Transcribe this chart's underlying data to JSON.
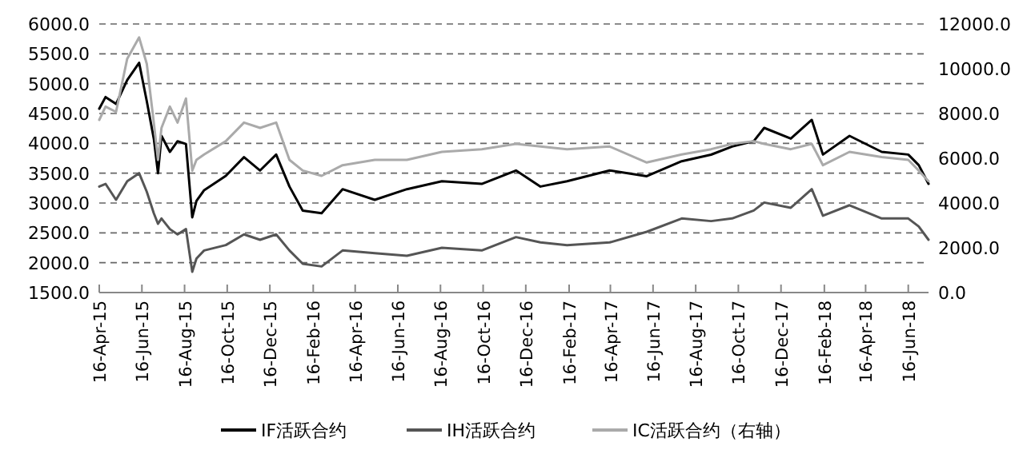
{
  "chart_data": {
    "type": "line",
    "x": [
      "2015-04-16",
      "2015-04-25",
      "2015-05-10",
      "2015-05-26",
      "2015-06-12",
      "2015-06-23",
      "2015-07-03",
      "2015-07-09",
      "2015-07-14",
      "2015-07-26",
      "2015-08-06",
      "2015-08-18",
      "2015-08-27",
      "2015-09-02",
      "2015-09-13",
      "2015-10-14",
      "2015-11-09",
      "2015-12-02",
      "2015-12-25",
      "2016-01-13",
      "2016-02-01",
      "2016-02-28",
      "2016-03-29",
      "2016-05-14",
      "2016-06-29",
      "2016-08-18",
      "2016-10-14",
      "2016-12-02",
      "2017-01-06",
      "2017-02-13",
      "2017-04-15",
      "2017-06-07",
      "2017-07-27",
      "2017-09-07",
      "2017-10-07",
      "2017-11-07",
      "2017-11-22",
      "2017-12-30",
      "2018-01-29",
      "2018-02-14",
      "2018-03-24",
      "2018-05-09",
      "2018-06-16",
      "2018-07-01",
      "2018-07-15"
    ],
    "series": [
      {
        "name": "IF活跃合约",
        "color": "#000000",
        "values": [
          4580,
          4776,
          4660,
          5062,
          5350,
          4705,
          4080,
          3500,
          4125,
          3857,
          4036,
          3990,
          2760,
          3035,
          3215,
          3455,
          3768,
          3545,
          3812,
          3276,
          2874,
          2830,
          3232,
          3053,
          3232,
          3366,
          3321,
          3545,
          3276,
          3366,
          3545,
          3450,
          3700,
          3810,
          3946,
          4036,
          4259,
          4080,
          4393,
          3812,
          4125,
          3857,
          3812,
          3634,
          3321
        ]
      },
      {
        "name": "IH活跃合约",
        "color": "#555555",
        "values": [
          3276,
          3321,
          3053,
          3366,
          3500,
          3188,
          2830,
          2652,
          2741,
          2563,
          2474,
          2563,
          1847,
          2070,
          2205,
          2295,
          2474,
          2384,
          2474,
          2205,
          1982,
          1937,
          2205,
          2160,
          2116,
          2250,
          2205,
          2429,
          2340,
          2295,
          2340,
          2518,
          2741,
          2697,
          2741,
          2875,
          3008,
          2920,
          3232,
          2786,
          2963,
          2741,
          2741,
          2607,
          2384
        ]
      },
      {
        "name": "IC活跃合约（右轴）",
        "color": "#aaaaaa",
        "axis": "y2",
        "values": [
          7714,
          8310,
          8070,
          10450,
          11400,
          10214,
          7595,
          5930,
          7357,
          8310,
          7595,
          8670,
          5450,
          5930,
          6167,
          6763,
          7595,
          7357,
          7595,
          5930,
          5450,
          5214,
          5690,
          5930,
          5930,
          6286,
          6405,
          6643,
          6524,
          6405,
          6524,
          5810,
          6167,
          6405,
          6643,
          6763,
          6643,
          6405,
          6643,
          5690,
          6286,
          6050,
          5930,
          5450,
          4976
        ]
      }
    ],
    "xlim": [
      "2015-04-16",
      "2018-07-15"
    ],
    "xticks": [
      {
        "value": "2015-04-16",
        "label": "16-Apr-15"
      },
      {
        "value": "2015-06-16",
        "label": "16-Jun-15"
      },
      {
        "value": "2015-08-16",
        "label": "16-Aug-15"
      },
      {
        "value": "2015-10-16",
        "label": "16-Oct-15"
      },
      {
        "value": "2015-12-16",
        "label": "16-Dec-15"
      },
      {
        "value": "2016-02-16",
        "label": "16-Feb-16"
      },
      {
        "value": "2016-04-16",
        "label": "16-Apr-16"
      },
      {
        "value": "2016-06-16",
        "label": "16-Jun-16"
      },
      {
        "value": "2016-08-16",
        "label": "16-Aug-16"
      },
      {
        "value": "2016-10-16",
        "label": "16-Oct-16"
      },
      {
        "value": "2016-12-16",
        "label": "16-Dec-16"
      },
      {
        "value": "2017-02-16",
        "label": "16-Feb-17"
      },
      {
        "value": "2017-04-16",
        "label": "16-Apr-17"
      },
      {
        "value": "2017-06-16",
        "label": "16-Jun-17"
      },
      {
        "value": "2017-08-16",
        "label": "16-Aug-17"
      },
      {
        "value": "2017-10-16",
        "label": "16-Oct-17"
      },
      {
        "value": "2017-12-16",
        "label": "16-Dec-17"
      },
      {
        "value": "2018-02-16",
        "label": "16-Feb-18"
      },
      {
        "value": "2018-04-16",
        "label": "16-Apr-18"
      },
      {
        "value": "2018-06-16",
        "label": "16-Jun-18"
      }
    ],
    "ylim": [
      1500,
      6000
    ],
    "yticks": [
      {
        "value": 1500,
        "label": "1500.0"
      },
      {
        "value": 2000,
        "label": "2000.0"
      },
      {
        "value": 2500,
        "label": "2500.0"
      },
      {
        "value": 3000,
        "label": "3000.0"
      },
      {
        "value": 3500,
        "label": "3500.0"
      },
      {
        "value": 4000,
        "label": "4000.0"
      },
      {
        "value": 4500,
        "label": "4500.0"
      },
      {
        "value": 5000,
        "label": "5000.0"
      },
      {
        "value": 5500,
        "label": "5500.0"
      },
      {
        "value": 6000,
        "label": "6000.0"
      }
    ],
    "y2lim": [
      0,
      12000
    ],
    "y2ticks": [
      {
        "value": 0,
        "label": "0.0"
      },
      {
        "value": 2000,
        "label": "2000.0"
      },
      {
        "value": 4000,
        "label": "4000.0"
      },
      {
        "value": 6000,
        "label": "6000.0"
      },
      {
        "value": 8000,
        "label": "8000.0"
      },
      {
        "value": 10000,
        "label": "10000.0"
      },
      {
        "value": 12000,
        "label": "12000.0"
      }
    ],
    "grid": "y",
    "legend": "bottom",
    "line_style": "solid"
  }
}
